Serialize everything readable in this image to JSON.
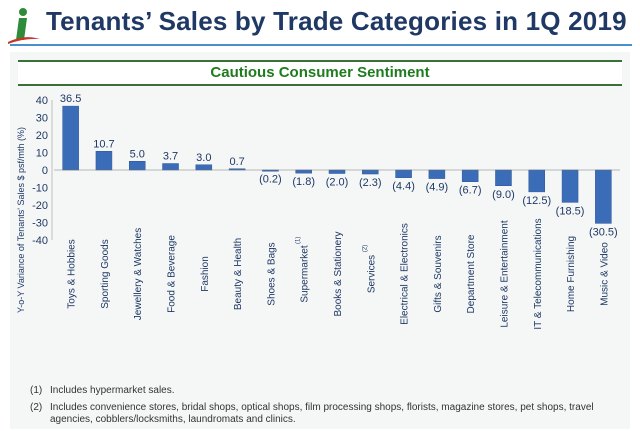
{
  "header": {
    "logo_icon": "stylized-i-logo",
    "title": "Tenants’ Sales by Trade Categories in 1Q 2019"
  },
  "banner": "Cautious Consumer Sentiment",
  "footnotes": [
    {
      "num": "(1)",
      "text": "Includes hypermarket sales."
    },
    {
      "num": "(2)",
      "text": "Includes convenience stores, bridal shops, optical shops, film processing shops, florists, magazine stores, pet shops, travel agencies, cobblers/locksmiths, laundromats and clinics."
    }
  ],
  "colors": {
    "bar": "#3b6cb7",
    "bar_dark": "#2f5597",
    "title": "#1f3864",
    "banner": "#1e7b1e"
  },
  "chart_data": {
    "type": "bar",
    "title": "",
    "xlabel": "",
    "ylabel": "Y-o-Y Variance of Tenants' Sales $ psf/mth (%)",
    "ylim": [
      -40,
      40
    ],
    "yticks": [
      40,
      30,
      20,
      10,
      0,
      -10,
      -20,
      -30,
      -40
    ],
    "grid": false,
    "categories": [
      "Toys & Hobbies",
      "Sporting Goods",
      "Jewellery & Watches",
      "Food & Beverage",
      "Fashion",
      "Beauty & Health",
      "Shoes & Bags",
      "Supermarket",
      "Books & Stationery",
      "Services",
      "Electrical & Electronics",
      "Gifts & Souvenirs",
      "Department Store",
      "Leisure & Entertainment",
      "IT & Telecommunications",
      "Home Furnishing",
      "Music & Video"
    ],
    "category_superscripts": [
      "",
      "",
      "",
      "",
      "",
      "",
      "",
      "(1)",
      "",
      "(2)",
      "",
      "",
      "",
      "",
      "",
      "",
      ""
    ],
    "values": [
      36.5,
      10.7,
      5.0,
      3.7,
      3.0,
      0.7,
      -0.2,
      -1.8,
      -2.0,
      -2.3,
      -4.4,
      -4.9,
      -6.7,
      -9.0,
      -12.5,
      -18.5,
      -30.5
    ],
    "value_labels": [
      "36.5",
      "10.7",
      "5.0",
      "3.7",
      "3.0",
      "0.7",
      "(0.2)",
      "(1.8)",
      "(2.0)",
      "(2.3)",
      "(4.4)",
      "(4.9)",
      "(6.7)",
      "(9.0)",
      "(12.5)",
      "(18.5)",
      "(30.5)"
    ]
  }
}
